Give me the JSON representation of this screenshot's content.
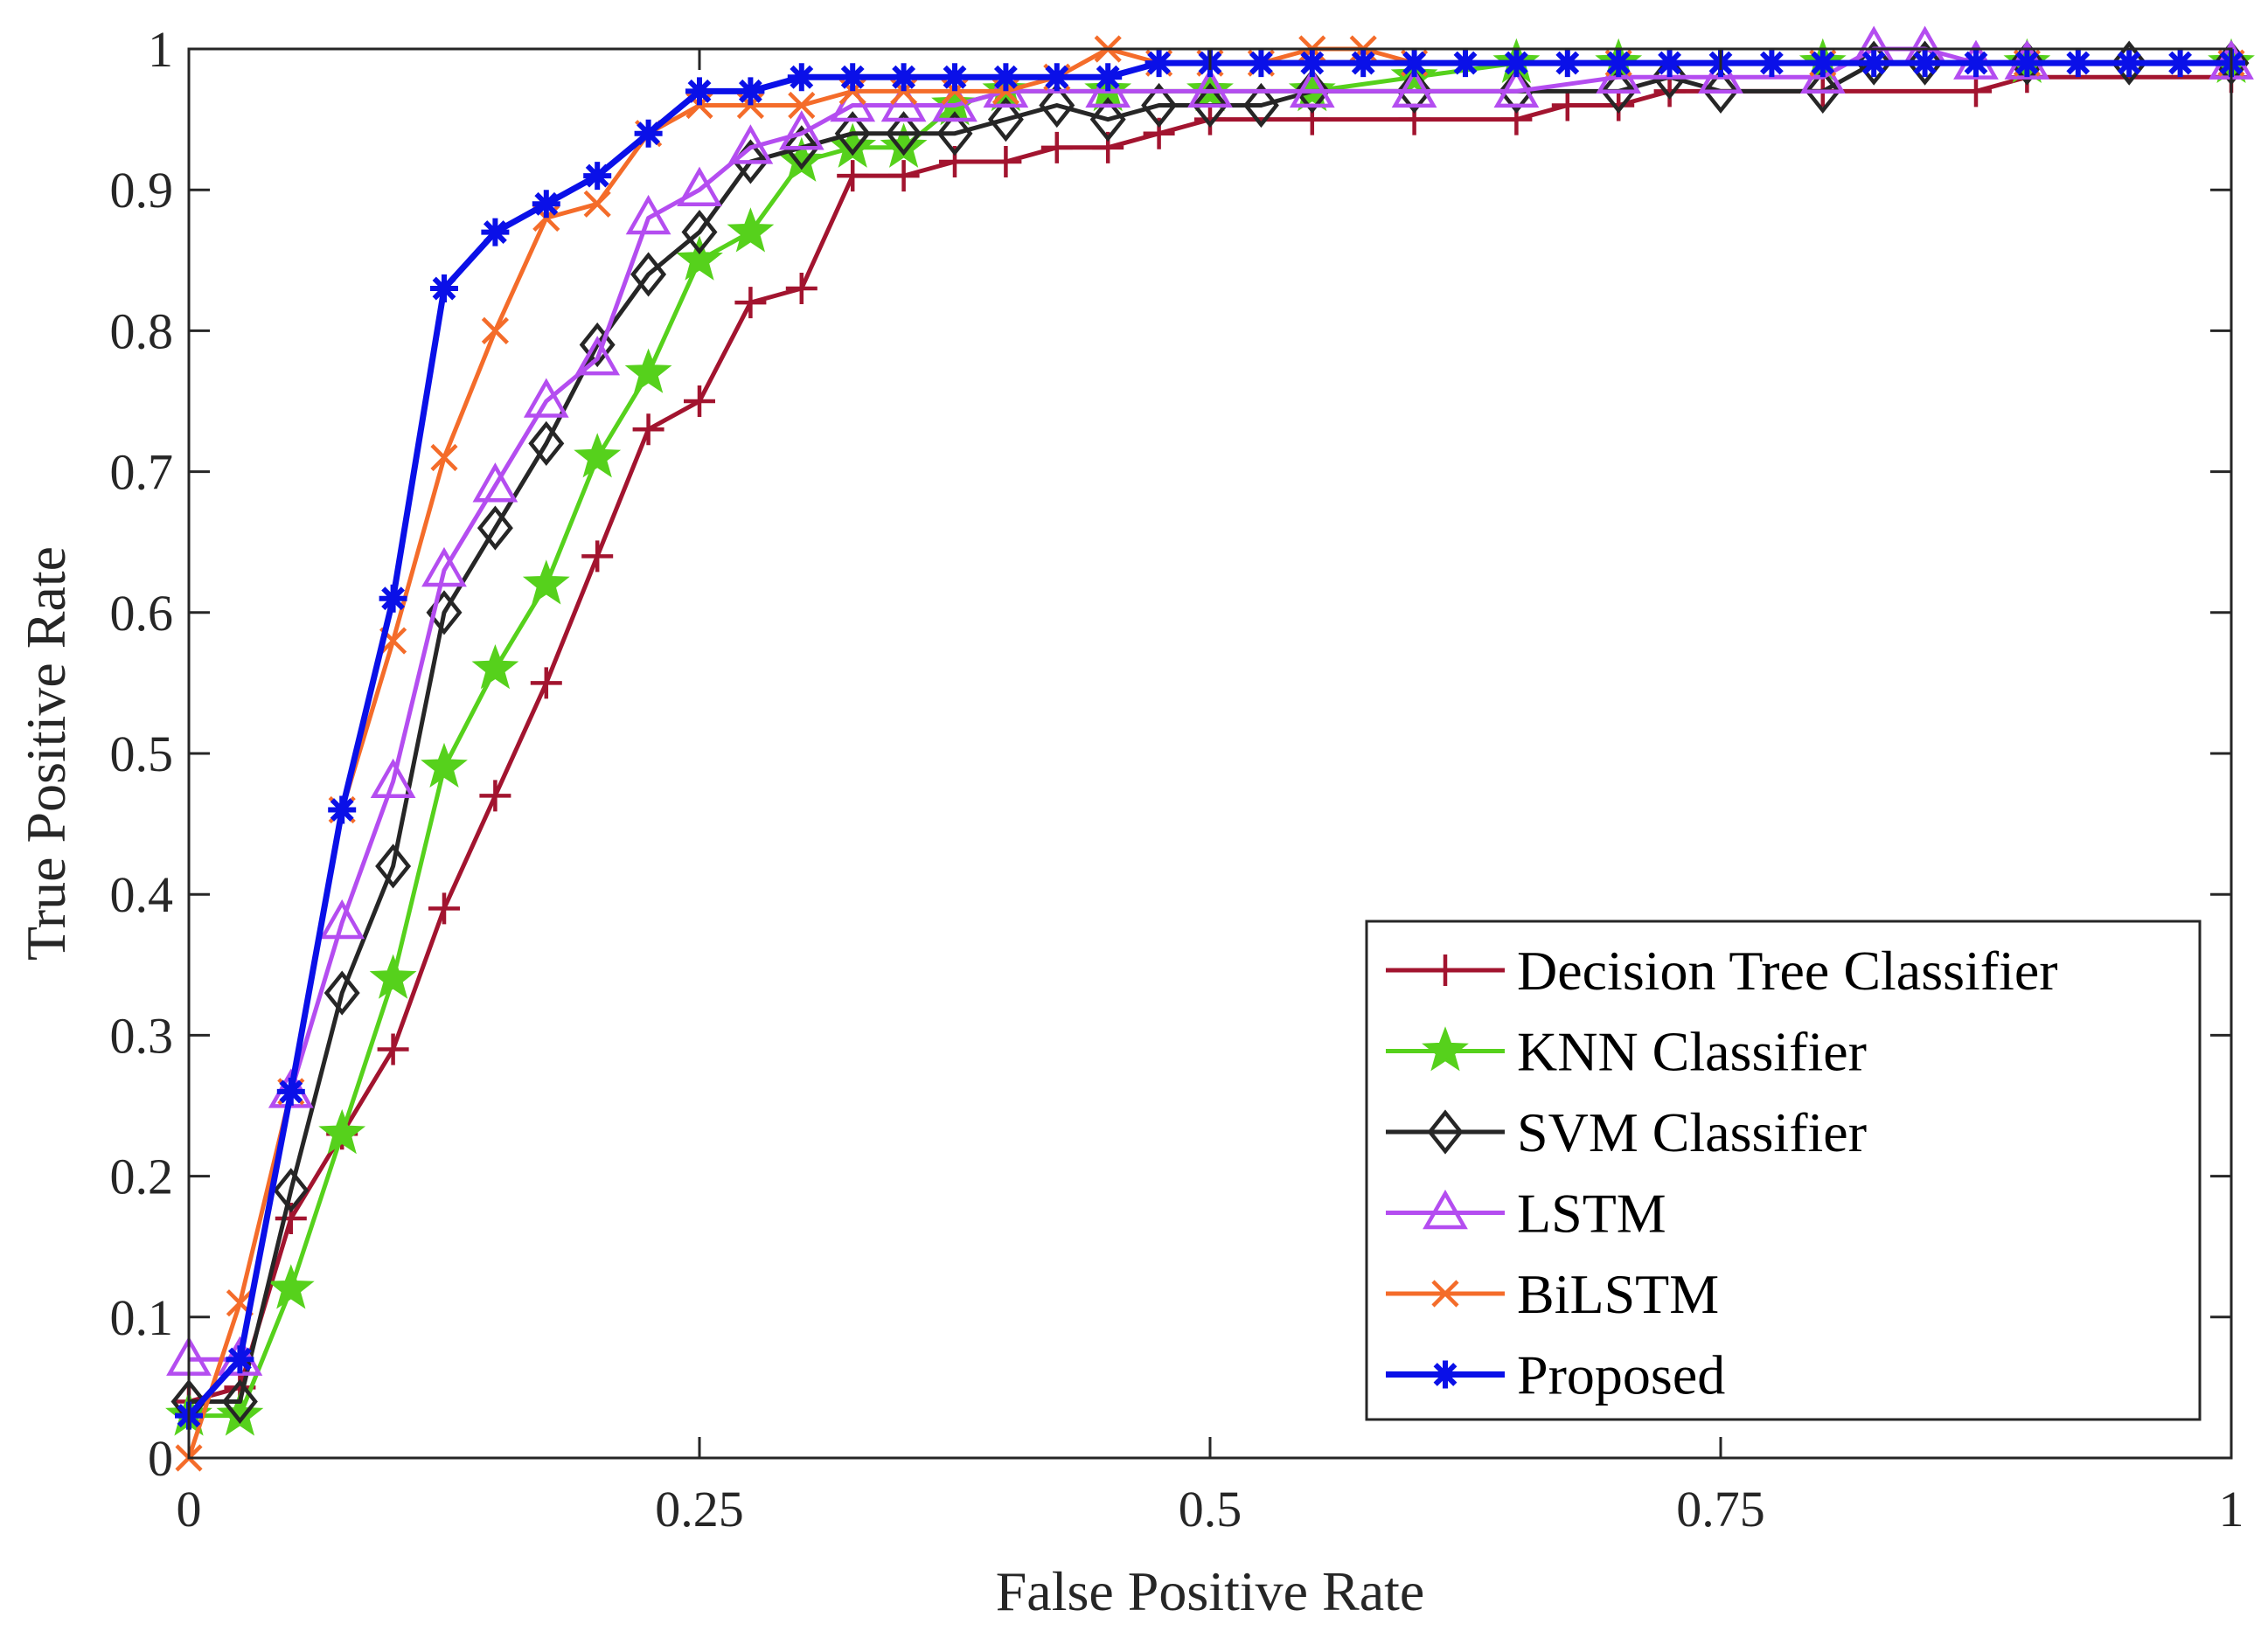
{
  "chart_data": {
    "type": "line",
    "title": "",
    "xlabel": "False Positive Rate",
    "ylabel": "True Positive Rate",
    "xlim": [
      0,
      1
    ],
    "ylim": [
      0,
      1
    ],
    "grid": false,
    "legend_position": "bottom-right",
    "xticks": [
      {
        "value": 0,
        "label": "0"
      },
      {
        "value": 0.25,
        "label": "0.25"
      },
      {
        "value": 0.5,
        "label": "0.5"
      },
      {
        "value": 0.75,
        "label": "0.75"
      },
      {
        "value": 1,
        "label": "1"
      }
    ],
    "yticks": [
      {
        "value": 0,
        "label": "0"
      },
      {
        "value": 0.1,
        "label": "0.1"
      },
      {
        "value": 0.2,
        "label": "0.2"
      },
      {
        "value": 0.3,
        "label": "0.3"
      },
      {
        "value": 0.4,
        "label": "0.4"
      },
      {
        "value": 0.5,
        "label": "0.5"
      },
      {
        "value": 0.6,
        "label": "0.6"
      },
      {
        "value": 0.7,
        "label": "0.7"
      },
      {
        "value": 0.8,
        "label": "0.8"
      },
      {
        "value": 0.9,
        "label": "0.9"
      },
      {
        "value": 1,
        "label": "1"
      }
    ],
    "series": [
      {
        "name": "Decision Tree Classifier",
        "color": "#A2142F",
        "marker": "plus",
        "points": [
          [
            0,
            0.04
          ],
          [
            0.025,
            0.05
          ],
          [
            0.05,
            0.17
          ],
          [
            0.075,
            0.23
          ],
          [
            0.1,
            0.29
          ],
          [
            0.125,
            0.39
          ],
          [
            0.15,
            0.47
          ],
          [
            0.175,
            0.55
          ],
          [
            0.2,
            0.64
          ],
          [
            0.225,
            0.73
          ],
          [
            0.25,
            0.75
          ],
          [
            0.275,
            0.82
          ],
          [
            0.3,
            0.83
          ],
          [
            0.325,
            0.91
          ],
          [
            0.35,
            0.91
          ],
          [
            0.375,
            0.92
          ],
          [
            0.4,
            0.92
          ],
          [
            0.425,
            0.93
          ],
          [
            0.45,
            0.93
          ],
          [
            0.475,
            0.94
          ],
          [
            0.5,
            0.95
          ],
          [
            0.55,
            0.95
          ],
          [
            0.6,
            0.95
          ],
          [
            0.65,
            0.95
          ],
          [
            0.675,
            0.96
          ],
          [
            0.7,
            0.96
          ],
          [
            0.725,
            0.97
          ],
          [
            0.8,
            0.97
          ],
          [
            0.875,
            0.97
          ],
          [
            0.9,
            0.98
          ],
          [
            1,
            0.98
          ]
        ]
      },
      {
        "name": "KNN Classifier",
        "color": "#56D11C",
        "marker": "star",
        "points": [
          [
            0,
            0.03
          ],
          [
            0.025,
            0.03
          ],
          [
            0.05,
            0.12
          ],
          [
            0.075,
            0.23
          ],
          [
            0.1,
            0.34
          ],
          [
            0.125,
            0.49
          ],
          [
            0.15,
            0.56
          ],
          [
            0.175,
            0.62
          ],
          [
            0.2,
            0.71
          ],
          [
            0.225,
            0.77
          ],
          [
            0.25,
            0.85
          ],
          [
            0.275,
            0.87
          ],
          [
            0.3,
            0.92
          ],
          [
            0.325,
            0.93
          ],
          [
            0.35,
            0.93
          ],
          [
            0.375,
            0.96
          ],
          [
            0.4,
            0.97
          ],
          [
            0.45,
            0.97
          ],
          [
            0.5,
            0.97
          ],
          [
            0.55,
            0.97
          ],
          [
            0.6,
            0.98
          ],
          [
            0.65,
            0.99
          ],
          [
            0.7,
            0.99
          ],
          [
            0.8,
            0.99
          ],
          [
            0.9,
            0.99
          ],
          [
            1,
            0.99
          ]
        ]
      },
      {
        "name": "SVM Classifier",
        "color": "#262626",
        "marker": "diamond",
        "points": [
          [
            0,
            0.04
          ],
          [
            0.025,
            0.04
          ],
          [
            0.05,
            0.19
          ],
          [
            0.075,
            0.33
          ],
          [
            0.1,
            0.42
          ],
          [
            0.125,
            0.6
          ],
          [
            0.15,
            0.66
          ],
          [
            0.175,
            0.72
          ],
          [
            0.2,
            0.79
          ],
          [
            0.225,
            0.84
          ],
          [
            0.25,
            0.87
          ],
          [
            0.275,
            0.92
          ],
          [
            0.3,
            0.93
          ],
          [
            0.325,
            0.94
          ],
          [
            0.35,
            0.94
          ],
          [
            0.375,
            0.94
          ],
          [
            0.4,
            0.95
          ],
          [
            0.425,
            0.96
          ],
          [
            0.45,
            0.95
          ],
          [
            0.475,
            0.96
          ],
          [
            0.5,
            0.96
          ],
          [
            0.525,
            0.96
          ],
          [
            0.55,
            0.97
          ],
          [
            0.6,
            0.97
          ],
          [
            0.65,
            0.97
          ],
          [
            0.7,
            0.97
          ],
          [
            0.725,
            0.98
          ],
          [
            0.75,
            0.97
          ],
          [
            0.8,
            0.97
          ],
          [
            0.825,
            0.99
          ],
          [
            0.85,
            0.99
          ],
          [
            0.9,
            0.99
          ],
          [
            0.95,
            0.99
          ],
          [
            1,
            0.99
          ]
        ]
      },
      {
        "name": "LSTM",
        "color": "#B44DF0",
        "marker": "triangle",
        "points": [
          [
            0,
            0.07
          ],
          [
            0.025,
            0.07
          ],
          [
            0.05,
            0.26
          ],
          [
            0.075,
            0.38
          ],
          [
            0.1,
            0.48
          ],
          [
            0.125,
            0.63
          ],
          [
            0.15,
            0.69
          ],
          [
            0.175,
            0.75
          ],
          [
            0.2,
            0.78
          ],
          [
            0.225,
            0.88
          ],
          [
            0.25,
            0.9
          ],
          [
            0.275,
            0.93
          ],
          [
            0.3,
            0.94
          ],
          [
            0.325,
            0.96
          ],
          [
            0.35,
            0.96
          ],
          [
            0.375,
            0.96
          ],
          [
            0.4,
            0.97
          ],
          [
            0.45,
            0.97
          ],
          [
            0.5,
            0.97
          ],
          [
            0.55,
            0.97
          ],
          [
            0.6,
            0.97
          ],
          [
            0.65,
            0.97
          ],
          [
            0.7,
            0.98
          ],
          [
            0.75,
            0.98
          ],
          [
            0.8,
            0.98
          ],
          [
            0.825,
            1.0
          ],
          [
            0.85,
            1.0
          ],
          [
            0.875,
            0.99
          ],
          [
            0.9,
            0.99
          ],
          [
            1,
            0.99
          ]
        ]
      },
      {
        "name": "BiLSTM",
        "color": "#F46C2A",
        "marker": "x",
        "points": [
          [
            0,
            0.0
          ],
          [
            0.025,
            0.11
          ],
          [
            0.05,
            0.26
          ],
          [
            0.075,
            0.46
          ],
          [
            0.1,
            0.58
          ],
          [
            0.125,
            0.71
          ],
          [
            0.15,
            0.8
          ],
          [
            0.175,
            0.88
          ],
          [
            0.2,
            0.89
          ],
          [
            0.225,
            0.94
          ],
          [
            0.25,
            0.96
          ],
          [
            0.275,
            0.96
          ],
          [
            0.3,
            0.96
          ],
          [
            0.325,
            0.97
          ],
          [
            0.35,
            0.97
          ],
          [
            0.375,
            0.97
          ],
          [
            0.4,
            0.97
          ],
          [
            0.425,
            0.98
          ],
          [
            0.45,
            1.0
          ],
          [
            0.475,
            0.99
          ],
          [
            0.5,
            0.99
          ],
          [
            0.525,
            0.99
          ],
          [
            0.55,
            1.0
          ],
          [
            0.575,
            1.0
          ],
          [
            0.6,
            0.99
          ],
          [
            0.7,
            0.99
          ],
          [
            0.8,
            0.99
          ],
          [
            0.9,
            0.99
          ],
          [
            1,
            0.99
          ]
        ]
      },
      {
        "name": "Proposed",
        "color": "#0A10E8",
        "marker": "asterisk",
        "points": [
          [
            0,
            0.03
          ],
          [
            0.025,
            0.07
          ],
          [
            0.05,
            0.26
          ],
          [
            0.075,
            0.46
          ],
          [
            0.1,
            0.61
          ],
          [
            0.125,
            0.83
          ],
          [
            0.15,
            0.87
          ],
          [
            0.175,
            0.89
          ],
          [
            0.2,
            0.91
          ],
          [
            0.225,
            0.94
          ],
          [
            0.25,
            0.97
          ],
          [
            0.275,
            0.97
          ],
          [
            0.3,
            0.98
          ],
          [
            0.325,
            0.98
          ],
          [
            0.35,
            0.98
          ],
          [
            0.375,
            0.98
          ],
          [
            0.4,
            0.98
          ],
          [
            0.425,
            0.98
          ],
          [
            0.45,
            0.98
          ],
          [
            0.475,
            0.99
          ],
          [
            0.5,
            0.99
          ],
          [
            0.525,
            0.99
          ],
          [
            0.55,
            0.99
          ],
          [
            0.575,
            0.99
          ],
          [
            0.6,
            0.99
          ],
          [
            0.625,
            0.99
          ],
          [
            0.65,
            0.99
          ],
          [
            0.675,
            0.99
          ],
          [
            0.7,
            0.99
          ],
          [
            0.725,
            0.99
          ],
          [
            0.75,
            0.99
          ],
          [
            0.775,
            0.99
          ],
          [
            0.8,
            0.99
          ],
          [
            0.825,
            0.99
          ],
          [
            0.85,
            0.99
          ],
          [
            0.875,
            0.99
          ],
          [
            0.9,
            0.99
          ],
          [
            0.925,
            0.99
          ],
          [
            0.95,
            0.99
          ],
          [
            0.975,
            0.99
          ],
          [
            1,
            0.99
          ]
        ]
      }
    ]
  }
}
